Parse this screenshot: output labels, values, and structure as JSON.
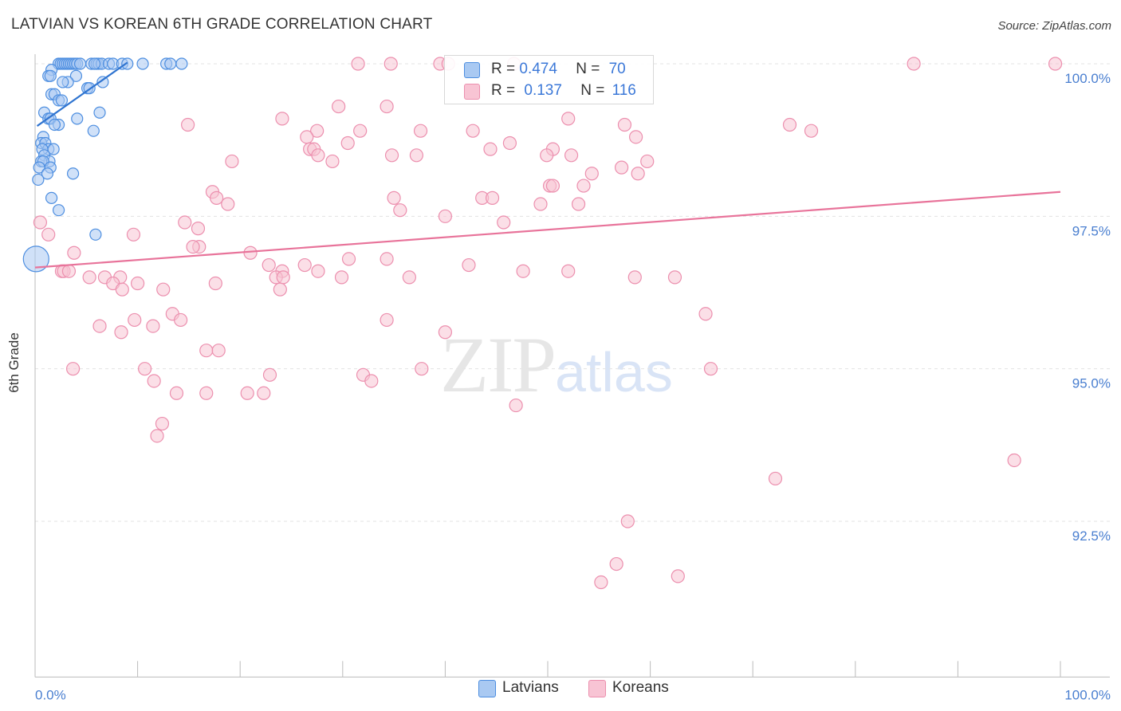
{
  "header": {
    "title": "LATVIAN VS KOREAN 6TH GRADE CORRELATION CHART",
    "source": "Source: ZipAtlas.com"
  },
  "watermark": {
    "zip": "ZIP",
    "atlas": "atlas"
  },
  "legend": {
    "latvians": {
      "r_label": "R = ",
      "r_value": "0.474",
      "n_label": "N = ",
      "n_value": "70"
    },
    "koreans": {
      "r_label": "R = ",
      "r_value": "0.137",
      "n_label": "N = ",
      "n_value": "116"
    }
  },
  "bottom_legend": {
    "latvians": "Latvians",
    "koreans": "Koreans"
  },
  "colors": {
    "latvian_fill": "#a9c9f2",
    "latvian_stroke": "#4d8ee0",
    "latvian_line": "#2f74d0",
    "korean_fill": "#f8c4d4",
    "korean_stroke": "#ec8fae",
    "korean_line": "#e8739a",
    "grid": "#e3e3e3",
    "tick_label": "#4a7fd0"
  },
  "chart_data": {
    "type": "scatter",
    "title": "LATVIAN VS KOREAN 6TH GRADE CORRELATION CHART",
    "xlabel": "",
    "ylabel": "6th Grade",
    "xlim": [
      0,
      100
    ],
    "ylim": [
      90.0,
      100.2
    ],
    "x_tick_labels": [
      {
        "x": 0,
        "label": "0.0%"
      },
      {
        "x": 100,
        "label": "100.0%"
      }
    ],
    "y_ticks": [
      {
        "y": 100.0,
        "label": "100.0%"
      },
      {
        "y": 97.5,
        "label": "97.5%"
      },
      {
        "y": 95.0,
        "label": "95.0%"
      },
      {
        "y": 92.5,
        "label": "92.5%"
      }
    ],
    "series": [
      {
        "name": "Latvians",
        "R": 0.474,
        "N": 70,
        "trendline": {
          "x0": 0.2,
          "y0": 98.98,
          "x1": 9.0,
          "y1": 100.02
        },
        "points": [
          [
            2.3,
            100
          ],
          [
            2.5,
            100
          ],
          [
            2.7,
            100
          ],
          [
            2.9,
            100
          ],
          [
            3.1,
            100
          ],
          [
            3.3,
            100
          ],
          [
            3.5,
            100
          ],
          [
            3.7,
            100
          ],
          [
            3.9,
            100
          ],
          [
            4.1,
            100
          ],
          [
            4.4,
            100
          ],
          [
            5.5,
            100
          ],
          [
            6.0,
            100
          ],
          [
            6.2,
            100
          ],
          [
            6.5,
            100
          ],
          [
            7.2,
            100
          ],
          [
            7.6,
            100
          ],
          [
            8.5,
            100
          ],
          [
            9.0,
            100
          ],
          [
            10.5,
            100
          ],
          [
            12.8,
            100
          ],
          [
            13.2,
            100
          ],
          [
            14.3,
            100
          ],
          [
            5.8,
            100
          ],
          [
            1.6,
            99.9
          ],
          [
            1.3,
            99.8
          ],
          [
            1.5,
            99.8
          ],
          [
            4.0,
            99.8
          ],
          [
            3.2,
            99.7
          ],
          [
            6.6,
            99.7
          ],
          [
            2.7,
            99.7
          ],
          [
            5.1,
            99.6
          ],
          [
            5.3,
            99.6
          ],
          [
            1.6,
            99.5
          ],
          [
            1.9,
            99.5
          ],
          [
            2.3,
            99.4
          ],
          [
            2.6,
            99.4
          ],
          [
            6.3,
            99.2
          ],
          [
            0.9,
            99.2
          ],
          [
            4.1,
            99.1
          ],
          [
            1.3,
            99.1
          ],
          [
            1.5,
            99.1
          ],
          [
            2.3,
            99.0
          ],
          [
            1.9,
            99.0
          ],
          [
            5.7,
            98.9
          ],
          [
            0.8,
            98.8
          ],
          [
            0.6,
            98.7
          ],
          [
            1.0,
            98.7
          ],
          [
            1.3,
            98.6
          ],
          [
            0.7,
            98.6
          ],
          [
            1.8,
            98.6
          ],
          [
            0.9,
            98.5
          ],
          [
            1.4,
            98.4
          ],
          [
            0.6,
            98.4
          ],
          [
            0.8,
            98.4
          ],
          [
            1.5,
            98.3
          ],
          [
            0.4,
            98.3
          ],
          [
            3.7,
            98.2
          ],
          [
            1.2,
            98.2
          ],
          [
            0.3,
            98.1
          ],
          [
            1.6,
            97.8
          ],
          [
            2.3,
            97.6
          ],
          [
            5.9,
            97.2
          ],
          [
            0.1,
            96.8
          ]
        ],
        "point_sizes": {
          "default": 7,
          "large": [
            [
              0.1,
              96.8,
              16
            ]
          ]
        }
      },
      {
        "name": "Koreans",
        "R": 0.137,
        "N": 116,
        "trendline": {
          "x0": 0,
          "y0": 96.66,
          "x1": 100,
          "y1": 97.9
        },
        "points": [
          [
            31.5,
            100
          ],
          [
            34.7,
            100
          ],
          [
            39.5,
            100
          ],
          [
            40.3,
            100
          ],
          [
            46.7,
            100
          ],
          [
            85.7,
            100
          ],
          [
            99.5,
            100
          ],
          [
            29.6,
            99.3
          ],
          [
            34.3,
            99.3
          ],
          [
            57.5,
            99.0
          ],
          [
            52.0,
            99.1
          ],
          [
            24.1,
            99.1
          ],
          [
            14.9,
            99.0
          ],
          [
            73.6,
            99.0
          ],
          [
            75.7,
            98.9
          ],
          [
            27.5,
            98.9
          ],
          [
            31.7,
            98.9
          ],
          [
            37.6,
            98.9
          ],
          [
            42.7,
            98.9
          ],
          [
            58.6,
            98.8
          ],
          [
            26.5,
            98.8
          ],
          [
            30.5,
            98.7
          ],
          [
            26.8,
            98.6
          ],
          [
            27.2,
            98.6
          ],
          [
            46.3,
            98.7
          ],
          [
            44.4,
            98.6
          ],
          [
            50.5,
            98.6
          ],
          [
            52.3,
            98.5
          ],
          [
            27.6,
            98.5
          ],
          [
            49.9,
            98.5
          ],
          [
            37.2,
            98.5
          ],
          [
            34.8,
            98.5
          ],
          [
            29.0,
            98.4
          ],
          [
            19.2,
            98.4
          ],
          [
            59.7,
            98.4
          ],
          [
            57.2,
            98.3
          ],
          [
            54.3,
            98.2
          ],
          [
            58.8,
            98.2
          ],
          [
            50.2,
            98.0
          ],
          [
            50.5,
            98.0
          ],
          [
            53.5,
            98.0
          ],
          [
            17.3,
            97.9
          ],
          [
            17.7,
            97.8
          ],
          [
            43.6,
            97.8
          ],
          [
            44.6,
            97.8
          ],
          [
            35.0,
            97.8
          ],
          [
            49.3,
            97.7
          ],
          [
            53.0,
            97.7
          ],
          [
            18.8,
            97.7
          ],
          [
            35.6,
            97.6
          ],
          [
            40.0,
            97.5
          ],
          [
            14.6,
            97.4
          ],
          [
            45.7,
            97.4
          ],
          [
            0.5,
            97.4
          ],
          [
            1.3,
            97.2
          ],
          [
            9.6,
            97.2
          ],
          [
            15.9,
            97.3
          ],
          [
            16.0,
            97.0
          ],
          [
            15.4,
            97.0
          ],
          [
            3.8,
            96.9
          ],
          [
            21.0,
            96.9
          ],
          [
            34.3,
            96.8
          ],
          [
            42.3,
            96.7
          ],
          [
            22.8,
            96.7
          ],
          [
            24.1,
            96.6
          ],
          [
            26.3,
            96.7
          ],
          [
            27.6,
            96.6
          ],
          [
            30.6,
            96.8
          ],
          [
            23.5,
            96.5
          ],
          [
            24.2,
            96.5
          ],
          [
            47.6,
            96.6
          ],
          [
            52.0,
            96.6
          ],
          [
            2.6,
            96.6
          ],
          [
            2.8,
            96.6
          ],
          [
            3.3,
            96.6
          ],
          [
            5.3,
            96.5
          ],
          [
            6.8,
            96.5
          ],
          [
            8.3,
            96.5
          ],
          [
            10.0,
            96.4
          ],
          [
            7.6,
            96.4
          ],
          [
            12.5,
            96.3
          ],
          [
            8.5,
            96.3
          ],
          [
            17.6,
            96.4
          ],
          [
            23.9,
            96.3
          ],
          [
            29.9,
            96.5
          ],
          [
            36.5,
            96.5
          ],
          [
            58.5,
            96.5
          ],
          [
            62.4,
            96.5
          ],
          [
            65.4,
            95.9
          ],
          [
            9.7,
            95.8
          ],
          [
            11.5,
            95.7
          ],
          [
            13.4,
            95.9
          ],
          [
            14.2,
            95.8
          ],
          [
            6.3,
            95.7
          ],
          [
            8.4,
            95.6
          ],
          [
            34.3,
            95.8
          ],
          [
            40.0,
            95.6
          ],
          [
            16.7,
            95.3
          ],
          [
            17.9,
            95.3
          ],
          [
            37.7,
            95.0
          ],
          [
            10.7,
            95.0
          ],
          [
            3.7,
            95.0
          ],
          [
            11.6,
            94.8
          ],
          [
            22.9,
            94.9
          ],
          [
            32.0,
            94.9
          ],
          [
            32.8,
            94.8
          ],
          [
            13.8,
            94.6
          ],
          [
            16.7,
            94.6
          ],
          [
            20.7,
            94.6
          ],
          [
            22.3,
            94.6
          ],
          [
            65.9,
            95.0
          ],
          [
            46.9,
            94.4
          ],
          [
            12.4,
            94.1
          ],
          [
            11.9,
            93.9
          ],
          [
            95.5,
            93.5
          ],
          [
            72.2,
            93.2
          ],
          [
            57.8,
            92.5
          ],
          [
            56.7,
            91.8
          ],
          [
            55.2,
            91.5
          ],
          [
            62.7,
            91.6
          ]
        ],
        "point_sizes": {
          "default": 8,
          "large": [
            [
              0.4,
              97.4,
              15
            ],
            [
              1.2,
              97.2,
              12
            ]
          ]
        }
      }
    ]
  }
}
